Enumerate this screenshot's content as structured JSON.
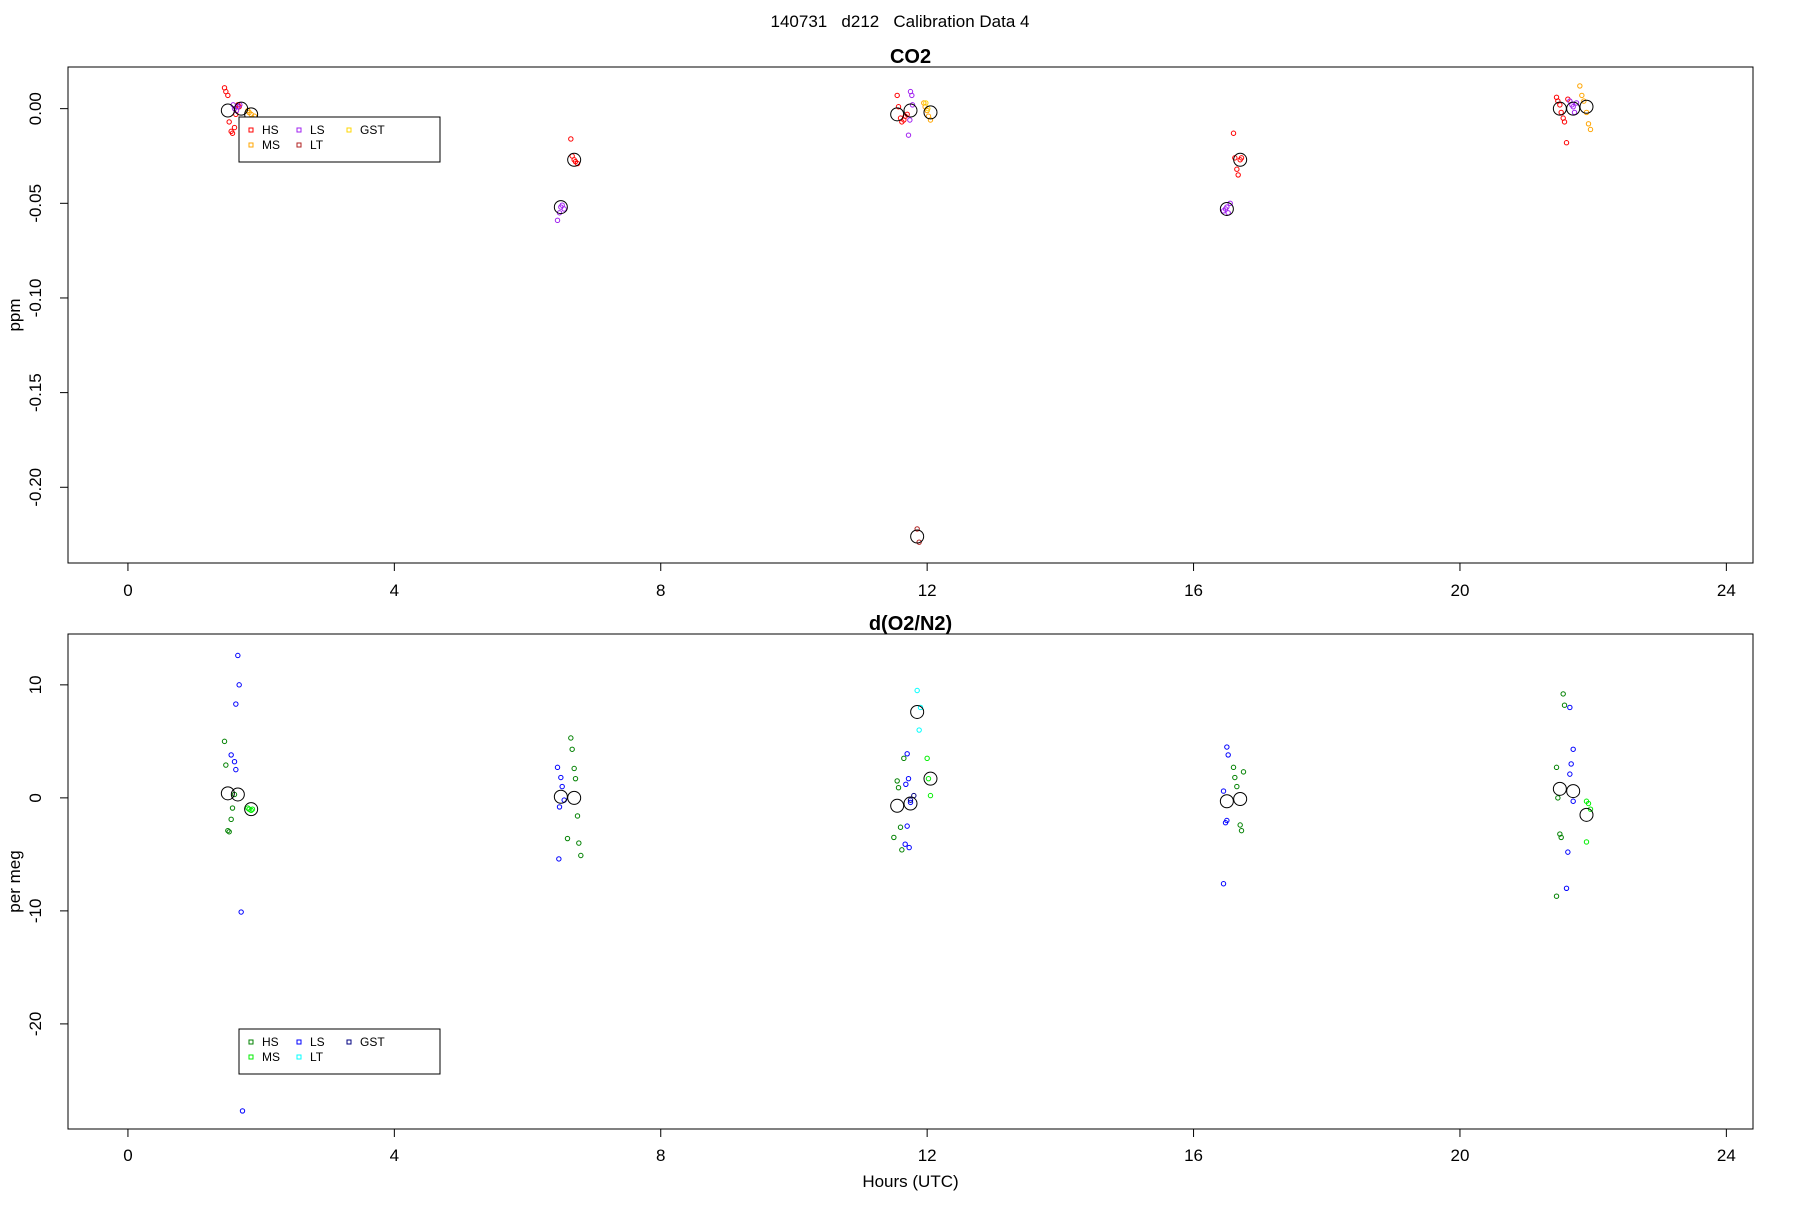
{
  "page_title": "140731   d212   Calibration Data 4",
  "chart_data": [
    {
      "type": "scatter",
      "title": "CO2",
      "xlabel": "",
      "ylabel": "ppm",
      "xlim": [
        -0.9,
        24.4
      ],
      "ylim": [
        -0.24,
        0.022
      ],
      "xticks": [
        0,
        4,
        8,
        12,
        16,
        20,
        24
      ],
      "xtick_labels": [
        "0",
        "4",
        "8",
        "12",
        "16",
        "20",
        "24"
      ],
      "yticks": [
        -0.2,
        -0.15,
        -0.1,
        -0.05,
        0
      ],
      "ytick_labels": [
        "-0.20",
        "-0.15",
        "-0.10",
        "-0.05",
        "0.00"
      ],
      "legend": {
        "placement": "top-left",
        "entries": [
          {
            "label": "HS",
            "color": "#ff0000"
          },
          {
            "label": "MS",
            "color": "#ffa500"
          },
          {
            "label": "LS",
            "color": "#a020f0"
          },
          {
            "label": "LT",
            "color": "#b22222"
          },
          {
            "label": "GST",
            "color": "#ffd700"
          }
        ]
      },
      "series": [
        {
          "label": "HS",
          "color": "#ff0000",
          "points": [
            [
              1.45,
              0.011
            ],
            [
              1.47,
              0.009
            ],
            [
              1.5,
              0.007
            ],
            [
              1.52,
              -0.007
            ],
            [
              1.55,
              -0.012
            ],
            [
              1.57,
              -0.013
            ],
            [
              1.6,
              -0.01
            ],
            [
              1.62,
              -0.003
            ],
            [
              1.65,
              0.002
            ],
            [
              1.67,
              0.001
            ],
            [
              6.65,
              -0.016
            ],
            [
              6.67,
              -0.025
            ],
            [
              6.7,
              -0.027
            ],
            [
              6.72,
              -0.028
            ],
            [
              6.75,
              -0.029
            ],
            [
              11.55,
              0.007
            ],
            [
              11.57,
              0.001
            ],
            [
              11.6,
              -0.005
            ],
            [
              11.62,
              -0.007
            ],
            [
              11.65,
              -0.006
            ],
            [
              11.67,
              -0.004
            ],
            [
              11.7,
              -0.003
            ],
            [
              16.6,
              -0.013
            ],
            [
              16.62,
              -0.026
            ],
            [
              16.65,
              -0.032
            ],
            [
              16.67,
              -0.035
            ],
            [
              16.7,
              -0.027
            ],
            [
              16.72,
              -0.026
            ],
            [
              21.45,
              0.006
            ],
            [
              21.47,
              0.004
            ],
            [
              21.5,
              0.002
            ],
            [
              21.52,
              -0.002
            ],
            [
              21.55,
              -0.005
            ],
            [
              21.57,
              -0.007
            ],
            [
              21.6,
              -0.018
            ],
            [
              21.62,
              0.005
            ]
          ]
        },
        {
          "label": "MS",
          "color": "#ffa500",
          "points": [
            [
              1.8,
              -0.001
            ],
            [
              1.82,
              -0.002
            ],
            [
              1.85,
              -0.003
            ],
            [
              1.87,
              -0.005
            ],
            [
              1.9,
              -0.004
            ],
            [
              11.95,
              0.003
            ],
            [
              11.97,
              0.001
            ],
            [
              12.0,
              -0.001
            ],
            [
              12.02,
              -0.004
            ],
            [
              12.05,
              -0.006
            ],
            [
              21.8,
              0.012
            ],
            [
              21.83,
              0.007
            ],
            [
              21.86,
              0.004
            ],
            [
              21.9,
              -0.002
            ],
            [
              21.93,
              -0.008
            ],
            [
              21.96,
              -0.011
            ]
          ]
        },
        {
          "label": "LS",
          "color": "#a020f0",
          "points": [
            [
              1.58,
              0.002
            ],
            [
              1.6,
              0.0
            ],
            [
              1.63,
              -0.001
            ],
            [
              1.65,
              0.001
            ],
            [
              1.68,
              0.002
            ],
            [
              6.45,
              -0.059
            ],
            [
              6.48,
              -0.055
            ],
            [
              6.5,
              -0.052
            ],
            [
              6.52,
              -0.051
            ],
            [
              6.55,
              -0.053
            ],
            [
              11.75,
              0.009
            ],
            [
              11.77,
              0.007
            ],
            [
              11.72,
              -0.014
            ],
            [
              11.74,
              -0.006
            ],
            [
              11.78,
              0.002
            ],
            [
              16.45,
              -0.054
            ],
            [
              16.48,
              -0.053
            ],
            [
              16.5,
              -0.052
            ],
            [
              16.52,
              -0.055
            ],
            [
              16.55,
              -0.05
            ],
            [
              21.65,
              0.004
            ],
            [
              21.68,
              0.002
            ],
            [
              21.7,
              0.001
            ],
            [
              21.72,
              -0.002
            ],
            [
              21.75,
              0.003
            ]
          ]
        },
        {
          "label": "LT",
          "color": "#b22222",
          "points": [
            [
              11.85,
              -0.222
            ],
            [
              11.88,
              -0.229
            ]
          ]
        },
        {
          "label": "GST",
          "color": "#ffd700",
          "points": [
            [
              11.98,
              0.003
            ],
            [
              12.01,
              0.0
            ]
          ]
        }
      ],
      "means": [
        [
          1.5,
          -0.001
        ],
        [
          1.7,
          0.0
        ],
        [
          1.85,
          -0.003
        ],
        [
          6.5,
          -0.052
        ],
        [
          6.7,
          -0.027
        ],
        [
          11.55,
          -0.003
        ],
        [
          11.75,
          -0.001
        ],
        [
          11.85,
          -0.226
        ],
        [
          12.05,
          -0.002
        ],
        [
          16.5,
          -0.053
        ],
        [
          16.7,
          -0.027
        ],
        [
          21.5,
          0.0
        ],
        [
          21.7,
          0.0
        ],
        [
          21.9,
          0.001
        ]
      ]
    },
    {
      "type": "scatter",
      "title": "d(O2/N2)",
      "xlabel": "Hours (UTC)",
      "ylabel": "per meg",
      "xlim": [
        -0.9,
        24.4
      ],
      "ylim": [
        -29.3,
        14.5
      ],
      "xticks": [
        0,
        4,
        8,
        12,
        16,
        20,
        24
      ],
      "xtick_labels": [
        "0",
        "4",
        "8",
        "12",
        "16",
        "20",
        "24"
      ],
      "yticks": [
        -20,
        -10,
        0,
        10
      ],
      "ytick_labels": [
        "-20",
        "-10",
        "0",
        "10"
      ],
      "legend": {
        "placement": "bottom-left",
        "entries": [
          {
            "label": "HS",
            "color": "#008000"
          },
          {
            "label": "MS",
            "color": "#00ee00"
          },
          {
            "label": "LS",
            "color": "#0000ff"
          },
          {
            "label": "LT",
            "color": "#00ffff"
          },
          {
            "label": "GST",
            "color": "#000080"
          }
        ]
      },
      "series": [
        {
          "label": "HS",
          "color": "#008000",
          "points": [
            [
              1.45,
              5.0
            ],
            [
              1.47,
              2.9
            ],
            [
              1.5,
              -2.9
            ],
            [
              1.52,
              -3.0
            ],
            [
              1.55,
              -1.9
            ],
            [
              1.57,
              -0.9
            ],
            [
              1.6,
              0.3
            ],
            [
              6.65,
              5.3
            ],
            [
              6.67,
              4.3
            ],
            [
              6.7,
              2.6
            ],
            [
              6.72,
              1.7
            ],
            [
              6.75,
              -1.6
            ],
            [
              6.6,
              -3.6
            ],
            [
              6.77,
              -4.0
            ],
            [
              6.8,
              -5.1
            ],
            [
              11.55,
              1.5
            ],
            [
              11.57,
              0.9
            ],
            [
              11.5,
              -3.5
            ],
            [
              11.6,
              -2.6
            ],
            [
              11.62,
              -4.6
            ],
            [
              11.65,
              3.5
            ],
            [
              16.6,
              2.7
            ],
            [
              16.62,
              1.8
            ],
            [
              16.65,
              1.0
            ],
            [
              16.7,
              -2.4
            ],
            [
              16.72,
              -2.9
            ],
            [
              16.75,
              2.3
            ],
            [
              21.45,
              2.7
            ],
            [
              21.47,
              0.0
            ],
            [
              21.5,
              -3.2
            ],
            [
              21.52,
              -3.5
            ],
            [
              21.45,
              -8.7
            ],
            [
              21.55,
              9.2
            ],
            [
              21.57,
              8.2
            ]
          ]
        },
        {
          "label": "MS",
          "color": "#00ee00",
          "points": [
            [
              1.8,
              -0.9
            ],
            [
              1.82,
              -1.0
            ],
            [
              1.85,
              -1.1
            ],
            [
              1.87,
              -1.0
            ],
            [
              12.0,
              3.5
            ],
            [
              12.02,
              1.7
            ],
            [
              12.05,
              0.2
            ],
            [
              21.9,
              -0.3
            ],
            [
              21.93,
              -0.5
            ],
            [
              21.96,
              -1.0
            ],
            [
              21.9,
              -3.9
            ]
          ]
        },
        {
          "label": "LS",
          "color": "#0000ff",
          "points": [
            [
              1.65,
              12.6
            ],
            [
              1.67,
              10.0
            ],
            [
              1.62,
              8.3
            ],
            [
              1.55,
              3.8
            ],
            [
              1.6,
              3.2
            ],
            [
              1.62,
              2.5
            ],
            [
              1.7,
              -10.1
            ],
            [
              1.72,
              -27.7
            ],
            [
              6.45,
              2.7
            ],
            [
              6.5,
              1.8
            ],
            [
              6.52,
              1.0
            ],
            [
              6.48,
              -0.8
            ],
            [
              6.55,
              -0.2
            ],
            [
              6.47,
              -5.4
            ],
            [
              11.7,
              3.9
            ],
            [
              11.72,
              1.7
            ],
            [
              11.75,
              -0.4
            ],
            [
              11.7,
              -2.5
            ],
            [
              11.67,
              -4.1
            ],
            [
              11.73,
              -4.4
            ],
            [
              11.68,
              1.2
            ],
            [
              16.45,
              0.6
            ],
            [
              16.5,
              4.5
            ],
            [
              16.52,
              3.8
            ],
            [
              16.48,
              -2.2
            ],
            [
              16.5,
              -2.0
            ],
            [
              16.45,
              -7.6
            ],
            [
              21.65,
              8.0
            ],
            [
              21.7,
              4.3
            ],
            [
              21.67,
              3.0
            ],
            [
              21.65,
              2.1
            ],
            [
              21.7,
              -0.3
            ],
            [
              21.62,
              -4.8
            ],
            [
              21.6,
              -8.0
            ]
          ]
        },
        {
          "label": "LT",
          "color": "#00ffff",
          "points": [
            [
              11.85,
              9.5
            ],
            [
              11.88,
              6.0
            ],
            [
              11.9,
              8.0
            ]
          ]
        },
        {
          "label": "GST",
          "color": "#000080",
          "points": [
            [
              11.75,
              -0.2
            ],
            [
              11.8,
              0.2
            ]
          ]
        }
      ],
      "means": [
        [
          1.5,
          0.4
        ],
        [
          1.65,
          0.3
        ],
        [
          1.85,
          -1.0
        ],
        [
          6.5,
          0.1
        ],
        [
          6.7,
          0.0
        ],
        [
          11.55,
          -0.7
        ],
        [
          11.75,
          -0.5
        ],
        [
          11.85,
          7.6
        ],
        [
          12.05,
          1.7
        ],
        [
          16.5,
          -0.3
        ],
        [
          16.7,
          -0.1
        ],
        [
          21.5,
          0.8
        ],
        [
          21.7,
          0.6
        ],
        [
          21.9,
          -1.5
        ]
      ]
    }
  ]
}
